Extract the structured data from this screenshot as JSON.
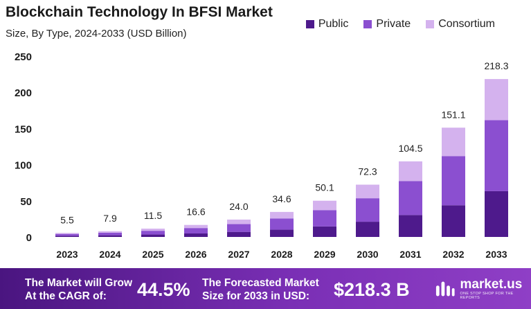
{
  "header": {
    "title": "Blockchain Technology In BFSI Market",
    "subtitle": "Size, By Type, 2024-2033 (USD Billion)"
  },
  "legend": {
    "items": [
      {
        "label": "Public",
        "color": "#4e1a8c"
      },
      {
        "label": "Private",
        "color": "#8b4fd0"
      },
      {
        "label": "Consortium",
        "color": "#d4b2ee"
      }
    ]
  },
  "chart_data": {
    "type": "bar",
    "stacked": true,
    "title": "Blockchain Technology In BFSI Market",
    "subtitle": "Size, By Type, 2024-2033 (USD Billion)",
    "categories": [
      "2023",
      "2024",
      "2025",
      "2026",
      "2027",
      "2028",
      "2029",
      "2030",
      "2031",
      "2032",
      "2033"
    ],
    "series": [
      {
        "name": "Public",
        "color": "#4e1a8c",
        "values": [
          1.6,
          2.3,
          3.3,
          4.8,
          7.0,
          10.0,
          14.5,
          21.0,
          30.3,
          43.8,
          63.3
        ]
      },
      {
        "name": "Private",
        "color": "#8b4fd0",
        "values": [
          2.5,
          3.6,
          5.2,
          7.5,
          10.8,
          15.6,
          22.6,
          32.5,
          47.0,
          68.0,
          98.2
        ]
      },
      {
        "name": "Consortium",
        "color": "#d4b2ee",
        "values": [
          1.4,
          2.0,
          3.0,
          4.3,
          6.2,
          9.0,
          13.0,
          18.8,
          27.2,
          39.3,
          56.8
        ]
      }
    ],
    "totals": [
      "5.5",
      "7.9",
      "11.5",
      "16.6",
      "24.0",
      "34.6",
      "50.1",
      "72.3",
      "104.5",
      "151.1",
      "218.3"
    ],
    "yticks": [
      "0",
      "50",
      "100",
      "150",
      "200",
      "250"
    ],
    "ylim": [
      0,
      250
    ],
    "grid": false,
    "legend_position": "top-right"
  },
  "footer": {
    "grow_line1": "The Market will Grow",
    "grow_line2": "At the CAGR of:",
    "cagr": "44.5%",
    "forecast_line1": "The Forecasted Market",
    "forecast_line2": "Size for 2033 in USD:",
    "forecast_value": "$218.3 B",
    "brand": "market.us",
    "tagline": "ONE STOP SHOP FOR THE REPORTS"
  }
}
